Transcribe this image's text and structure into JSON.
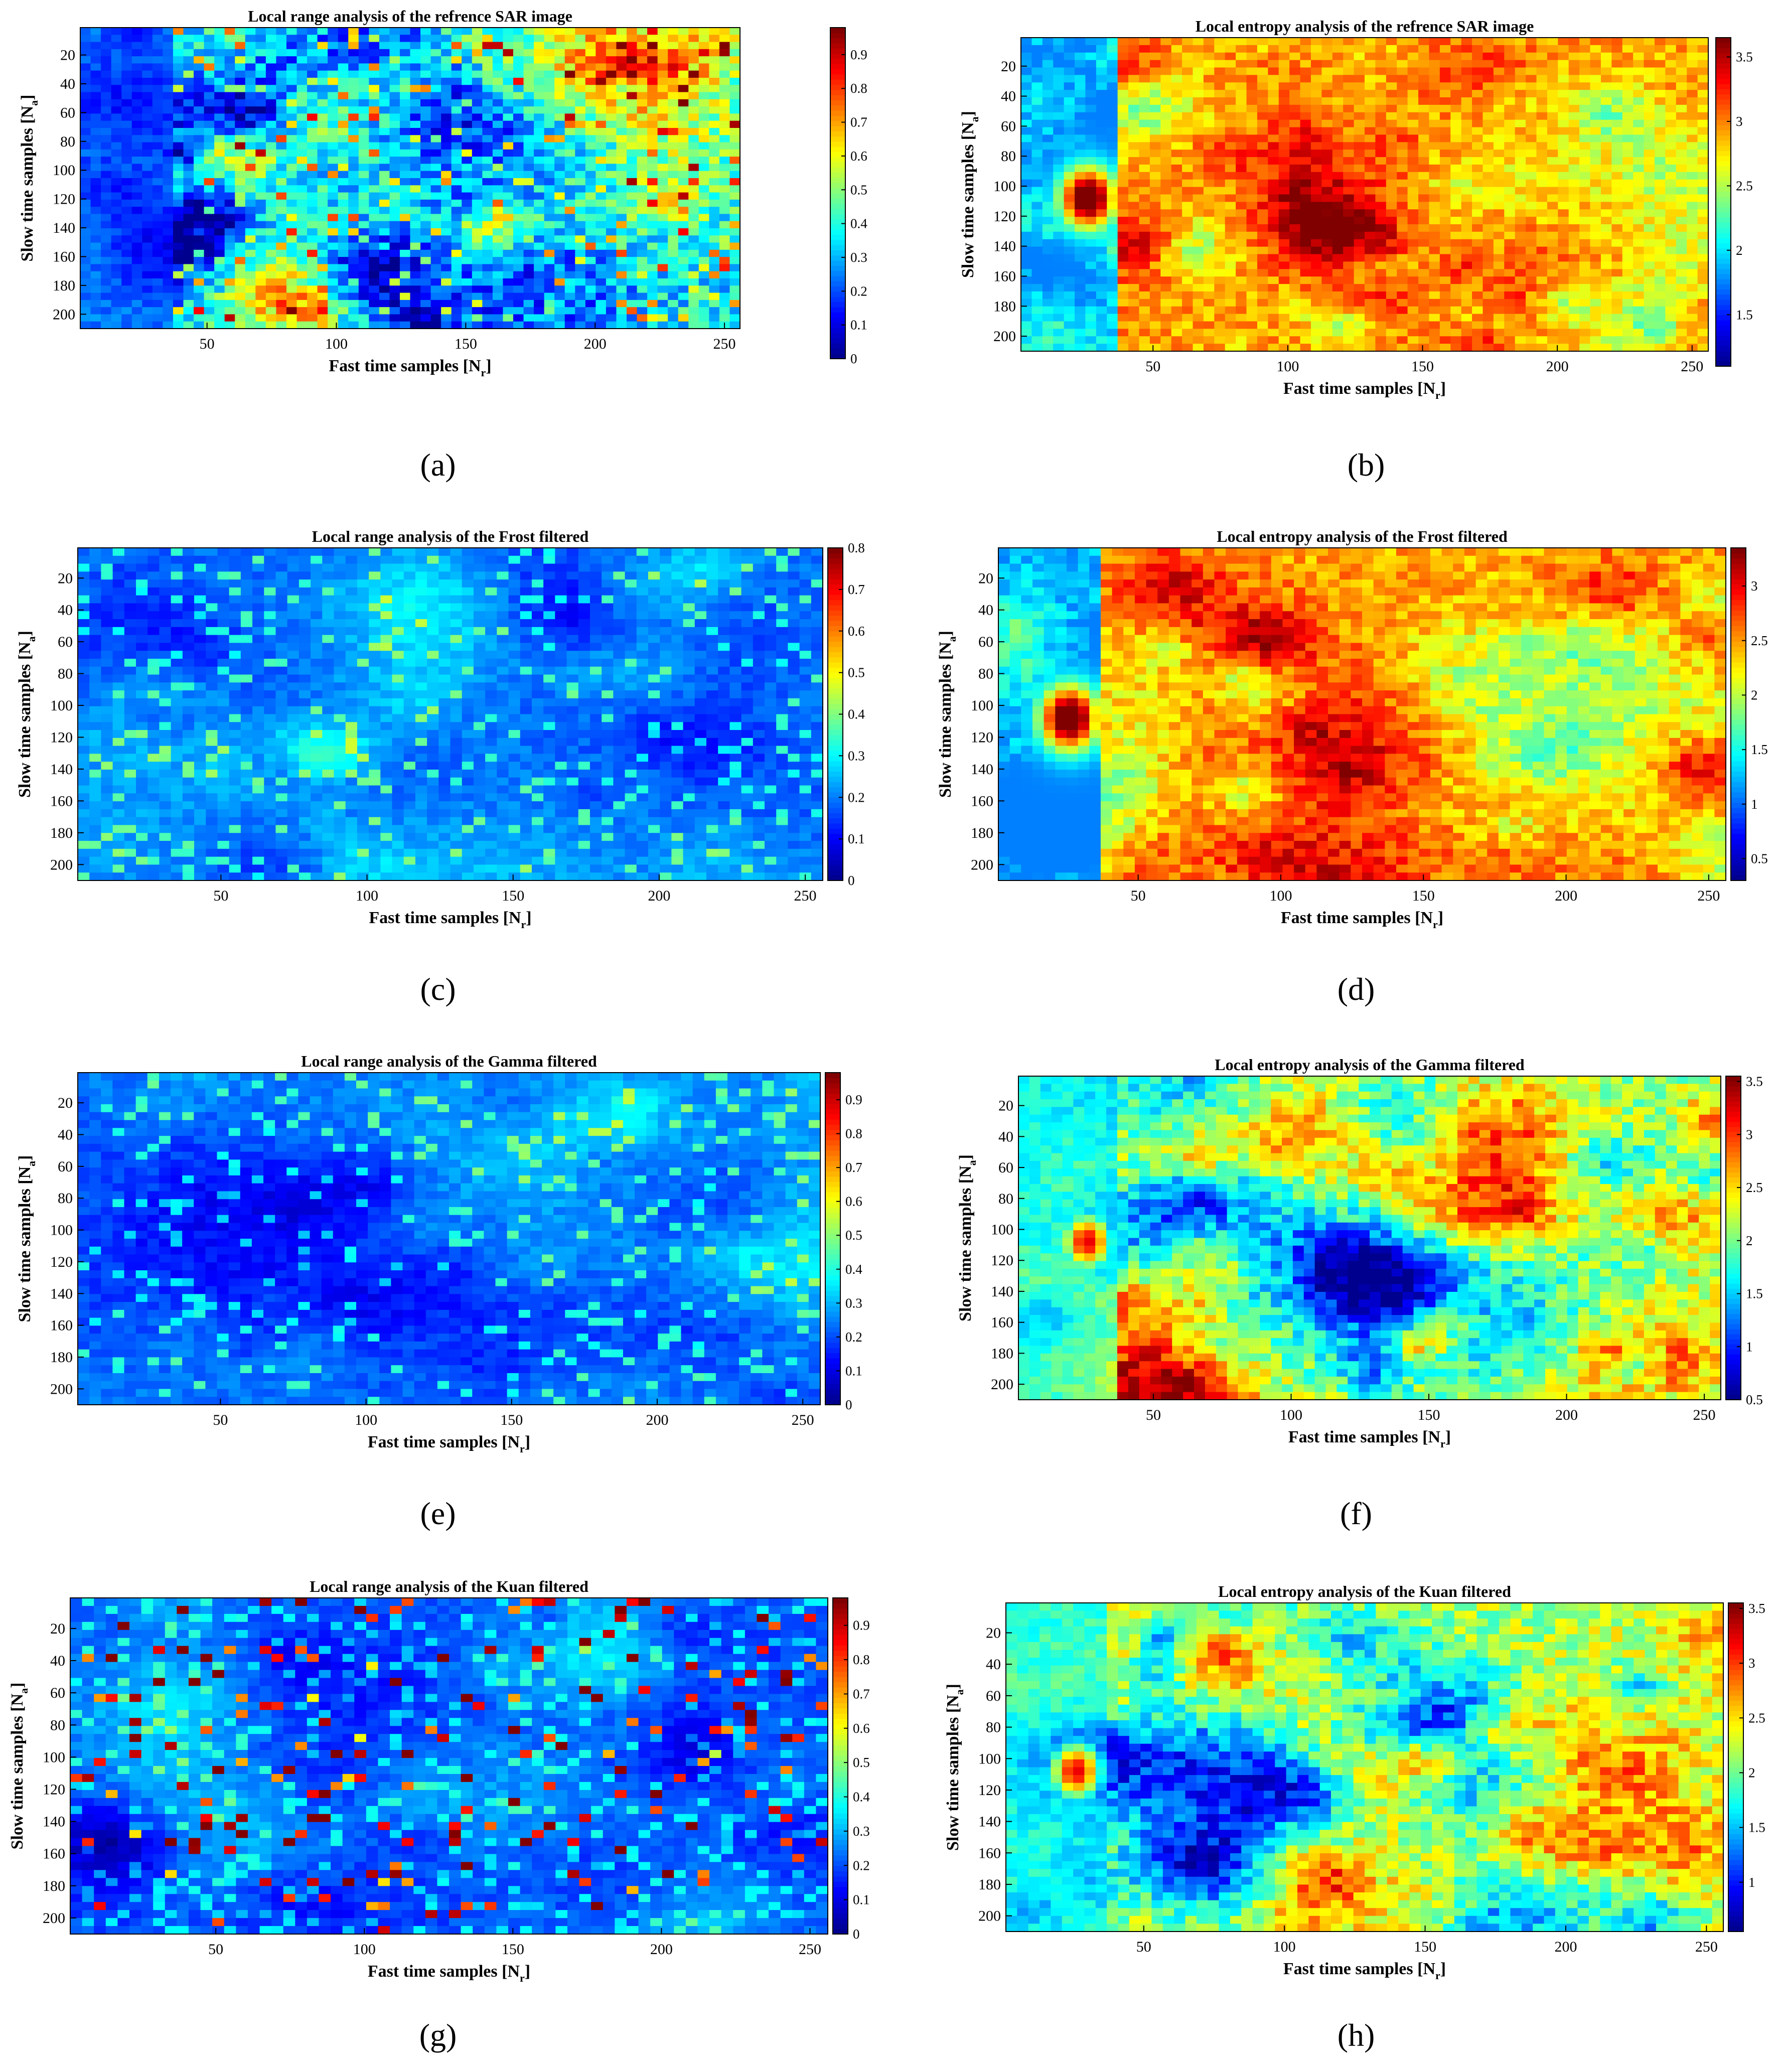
{
  "colorscale": [
    "#00008f",
    "#0000ff",
    "#0080ff",
    "#00ffff",
    "#80ff80",
    "#ffff00",
    "#ff8000",
    "#ff0000",
    "#800000"
  ],
  "chart_data": [
    {
      "id": "a",
      "type": "heatmap",
      "caption": "(a)",
      "title": "Local range analysis of the refrence SAR image",
      "xlabel_main": "Fast time samples [N",
      "xlabel_sub": "r",
      "xlabel_end": "]",
      "ylabel_main": "Slow time samples [N",
      "ylabel_sub": "a",
      "ylabel_end": "]",
      "xlim": [
        1,
        256
      ],
      "ylim": [
        1,
        210
      ],
      "xticks": [
        50,
        100,
        150,
        200,
        250
      ],
      "yticks": [
        20,
        40,
        60,
        80,
        100,
        120,
        140,
        160,
        180,
        200
      ],
      "clim": [
        0,
        0.98
      ],
      "cticks": [
        0,
        0.1,
        0.2,
        0.3,
        0.4,
        0.5,
        0.6,
        0.7,
        0.8,
        0.9
      ],
      "kind": "range",
      "seed": 11
    },
    {
      "id": "b",
      "type": "heatmap",
      "caption": "(b)",
      "title": "Local entropy analysis of the refrence SAR image",
      "xlabel_main": "Fast time samples [N",
      "xlabel_sub": "r",
      "xlabel_end": "]",
      "ylabel_main": "Slow time samples [N",
      "ylabel_sub": "a",
      "ylabel_end": "]",
      "xlim": [
        1,
        256
      ],
      "ylim": [
        1,
        210
      ],
      "xticks": [
        50,
        100,
        150,
        200,
        250
      ],
      "yticks": [
        20,
        40,
        60,
        80,
        100,
        120,
        140,
        160,
        180,
        200
      ],
      "clim": [
        1.1,
        3.65
      ],
      "cticks": [
        1.5,
        2,
        2.5,
        3,
        3.5
      ],
      "kind": "entropy",
      "seed": 23
    },
    {
      "id": "c",
      "type": "heatmap",
      "caption": "(c)",
      "title": "Local range analysis of the Frost filtered",
      "xlabel_main": "Fast time samples [N",
      "xlabel_sub": "r",
      "xlabel_end": "]",
      "ylabel_main": "Slow time samples [N",
      "ylabel_sub": "a",
      "ylabel_end": "]",
      "xlim": [
        1,
        256
      ],
      "ylim": [
        1,
        210
      ],
      "xticks": [
        50,
        100,
        150,
        200,
        250
      ],
      "yticks": [
        20,
        40,
        60,
        80,
        100,
        120,
        140,
        160,
        180,
        200
      ],
      "clim": [
        0,
        0.8
      ],
      "cticks": [
        0,
        0.1,
        0.2,
        0.3,
        0.4,
        0.5,
        0.6,
        0.7,
        0.8
      ],
      "kind": "range-low",
      "seed": 37
    },
    {
      "id": "d",
      "type": "heatmap",
      "caption": "(d)",
      "title": "Local entropy analysis of the Frost filtered",
      "xlabel_main": "Fast time samples [N",
      "xlabel_sub": "r",
      "xlabel_end": "]",
      "ylabel_main": "Slow time samples [N",
      "ylabel_sub": "a",
      "ylabel_end": "]",
      "xlim": [
        1,
        256
      ],
      "ylim": [
        1,
        210
      ],
      "xticks": [
        50,
        100,
        150,
        200,
        250
      ],
      "yticks": [
        20,
        40,
        60,
        80,
        100,
        120,
        140,
        160,
        180,
        200
      ],
      "clim": [
        0.3,
        3.35
      ],
      "cticks": [
        0.5,
        1,
        1.5,
        2,
        2.5,
        3
      ],
      "kind": "entropy",
      "seed": 41
    },
    {
      "id": "e",
      "type": "heatmap",
      "caption": "(e)",
      "title": "Local range analysis of the Gamma filtered",
      "xlabel_main": "Fast time samples [N",
      "xlabel_sub": "r",
      "xlabel_end": "]",
      "ylabel_main": "Slow time samples [N",
      "ylabel_sub": "a",
      "ylabel_end": "]",
      "xlim": [
        1,
        256
      ],
      "ylim": [
        1,
        210
      ],
      "xticks": [
        50,
        100,
        150,
        200,
        250
      ],
      "yticks": [
        20,
        40,
        60,
        80,
        100,
        120,
        140,
        160,
        180,
        200
      ],
      "clim": [
        0,
        0.98
      ],
      "cticks": [
        0,
        0.1,
        0.2,
        0.3,
        0.4,
        0.5,
        0.6,
        0.7,
        0.8,
        0.9
      ],
      "kind": "range-low",
      "seed": 53
    },
    {
      "id": "f",
      "type": "heatmap",
      "caption": "(f)",
      "title": "Local entropy analysis of the Gamma filtered",
      "xlabel_main": "Fast time samples [N",
      "xlabel_sub": "r",
      "xlabel_end": "]",
      "ylabel_main": "Slow time samples [N",
      "ylabel_sub": "a",
      "ylabel_end": "]",
      "xlim": [
        1,
        256
      ],
      "ylim": [
        1,
        210
      ],
      "xticks": [
        50,
        100,
        150,
        200,
        250
      ],
      "yticks": [
        20,
        40,
        60,
        80,
        100,
        120,
        140,
        160,
        180,
        200
      ],
      "clim": [
        0.5,
        3.55
      ],
      "cticks": [
        0.5,
        1,
        1.5,
        2,
        2.5,
        3,
        3.5
      ],
      "kind": "entropy-mid",
      "seed": 67
    },
    {
      "id": "g",
      "type": "heatmap",
      "caption": "(g)",
      "title": "Local range analysis of the Kuan filtered",
      "xlabel_main": "Fast time samples [N",
      "xlabel_sub": "r",
      "xlabel_end": "]",
      "ylabel_main": "Slow time samples [N",
      "ylabel_sub": "a",
      "ylabel_end": "]",
      "xlim": [
        1,
        256
      ],
      "ylim": [
        1,
        210
      ],
      "xticks": [
        50,
        100,
        150,
        200,
        250
      ],
      "yticks": [
        20,
        40,
        60,
        80,
        100,
        120,
        140,
        160,
        180,
        200
      ],
      "clim": [
        0,
        0.98
      ],
      "cticks": [
        0,
        0.1,
        0.2,
        0.3,
        0.4,
        0.5,
        0.6,
        0.7,
        0.8,
        0.9
      ],
      "kind": "range-spots",
      "seed": 79
    },
    {
      "id": "h",
      "type": "heatmap",
      "caption": "(h)",
      "title": "Local entropy analysis of the Kuan filtered",
      "xlabel_main": "Fast time samples [N",
      "xlabel_sub": "r",
      "xlabel_end": "]",
      "ylabel_main": "Slow time samples [N",
      "ylabel_sub": "a",
      "ylabel_end": "]",
      "xlim": [
        1,
        256
      ],
      "ylim": [
        1,
        210
      ],
      "xticks": [
        50,
        100,
        150,
        200,
        250
      ],
      "yticks": [
        20,
        40,
        60,
        80,
        100,
        120,
        140,
        160,
        180,
        200
      ],
      "clim": [
        0.55,
        3.55
      ],
      "cticks": [
        1,
        1.5,
        2,
        2.5,
        3,
        3.5
      ],
      "kind": "entropy-mid",
      "seed": 83
    }
  ]
}
